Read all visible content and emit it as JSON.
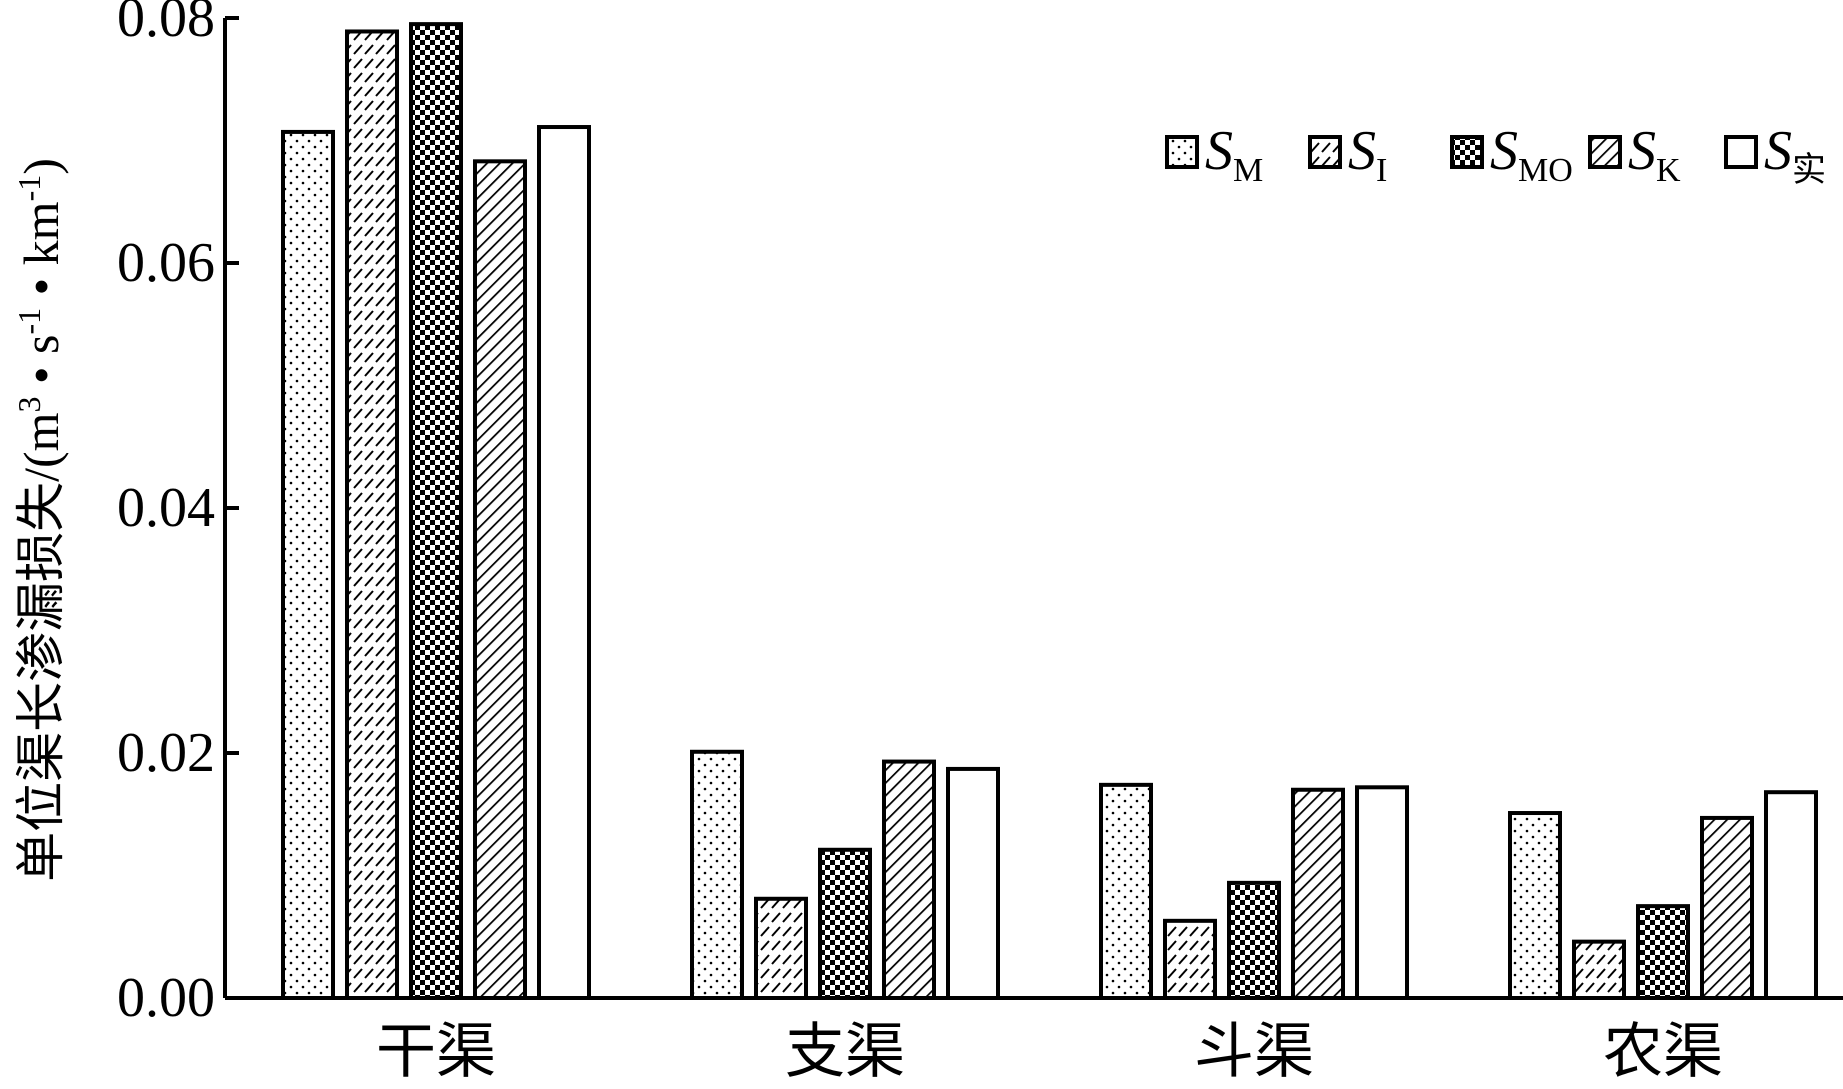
{
  "chart_data": {
    "type": "bar",
    "title": "",
    "xlabel": "",
    "ylabel": "单位渠长渗漏损失/(m³ • s⁻¹ • km⁻¹)",
    "ylabel_parts": {
      "prefix": "单位渠长渗漏损失/(m",
      "sup1": "3",
      "mid1": " • s",
      "sup2": "-1",
      "mid2": " • km",
      "sup3": "-1",
      "suffix": ")"
    },
    "ylim": [
      0,
      0.08
    ],
    "yticks": [
      "0.00",
      "0.02",
      "0.04",
      "0.06",
      "0.08"
    ],
    "categories": [
      "干渠",
      "支渠",
      "斗渠",
      "农渠"
    ],
    "series": [
      {
        "name": "S_M",
        "symbol": "S",
        "subscript": "M",
        "pattern": "dots",
        "values": [
          0.0707,
          0.0201,
          0.0174,
          0.0151
        ]
      },
      {
        "name": "S_I",
        "symbol": "S",
        "subscript": "I",
        "pattern": "dashes",
        "values": [
          0.0789,
          0.0081,
          0.0063,
          0.0046
        ]
      },
      {
        "name": "S_MO",
        "symbol": "S",
        "subscript": "MO",
        "pattern": "checker",
        "values": [
          0.0795,
          0.0121,
          0.0094,
          0.0075
        ]
      },
      {
        "name": "S_K",
        "symbol": "S",
        "subscript": "K",
        "pattern": "diagonal",
        "values": [
          0.0683,
          0.0193,
          0.017,
          0.0147
        ]
      },
      {
        "name": "S_实",
        "symbol": "S",
        "subscript": "实",
        "pattern": "none",
        "values": [
          0.0711,
          0.0187,
          0.0172,
          0.0168
        ]
      }
    ],
    "legend_position": "top-right",
    "grid": false,
    "colors": {
      "stroke": "#000000",
      "fill": "#ffffff"
    }
  }
}
